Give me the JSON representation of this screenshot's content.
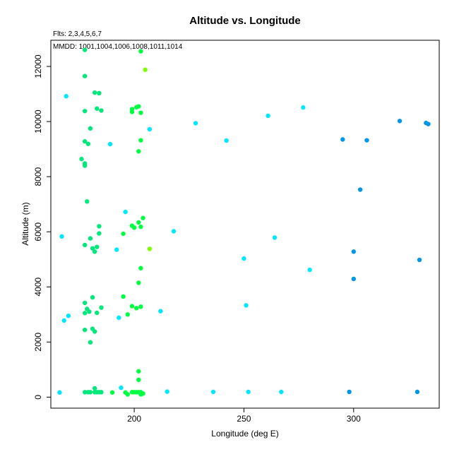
{
  "chart_data": {
    "type": "scatter",
    "title": "Altitude vs. Longitude",
    "notes": [
      "Flts: 2,3,4,5,6,7",
      "MMDD: 1001,1004,1006,1008,1011,1014"
    ],
    "xlabel": "Longitude (deg E)",
    "ylabel": "Altitude (m)",
    "xlim": [
      162,
      339
    ],
    "ylim": [
      -400,
      12950
    ],
    "xticks": [
      200,
      250,
      300
    ],
    "yticks": [
      0,
      2000,
      4000,
      6000,
      8000,
      10000,
      12000
    ],
    "grid": false,
    "series": [
      {
        "color": "#00e87a",
        "points": [
          [
            177.5,
            12600
          ],
          [
            177.5,
            11650
          ],
          [
            177.5,
            10380
          ],
          [
            177.5,
            9280
          ],
          [
            177.5,
            8480
          ],
          [
            177.5,
            8400
          ],
          [
            177.5,
            5520
          ],
          [
            177.5,
            3420
          ],
          [
            177.5,
            3050
          ],
          [
            177.5,
            2440
          ],
          [
            177.5,
            180
          ],
          [
            178.5,
            7100
          ],
          [
            178.5,
            3200
          ],
          [
            179.5,
            3100
          ],
          [
            179,
            180
          ],
          [
            180,
            180
          ],
          [
            181,
            3620
          ],
          [
            181,
            2480
          ],
          [
            182,
            2380
          ],
          [
            182,
            320
          ],
          [
            182,
            180
          ],
          [
            183,
            180
          ],
          [
            184,
            180
          ],
          [
            185,
            180
          ],
          [
            182,
            11050
          ],
          [
            184,
            11030
          ],
          [
            183,
            10470
          ],
          [
            185,
            10400
          ],
          [
            180,
            9750
          ],
          [
            184,
            6200
          ],
          [
            184,
            5940
          ],
          [
            183,
            5450
          ],
          [
            183,
            3060
          ],
          [
            185,
            3250
          ],
          [
            180,
            1990
          ],
          [
            176,
            8640
          ],
          [
            179,
            9190
          ],
          [
            180,
            5760
          ],
          [
            181,
            5400
          ],
          [
            182,
            5280
          ]
        ]
      },
      {
        "color": "#00ff40",
        "points": [
          [
            195,
            5930
          ],
          [
            195,
            3650
          ],
          [
            197,
            3000
          ],
          [
            199,
            6220
          ],
          [
            200,
            6150
          ],
          [
            199,
            3300
          ],
          [
            199,
            10450
          ],
          [
            199,
            10350
          ],
          [
            201,
            10520
          ],
          [
            202,
            10550
          ],
          [
            203,
            10320
          ],
          [
            203,
            9320
          ],
          [
            202,
            8920
          ],
          [
            202,
            6340
          ],
          [
            204,
            6500
          ],
          [
            203,
            6180
          ],
          [
            203,
            4680
          ],
          [
            202,
            4150
          ],
          [
            201,
            3230
          ],
          [
            203,
            3280
          ],
          [
            202,
            940
          ],
          [
            202,
            630
          ],
          [
            190,
            170
          ],
          [
            196,
            170
          ],
          [
            197,
            100
          ],
          [
            199,
            180
          ],
          [
            200,
            180
          ],
          [
            201,
            180
          ],
          [
            202,
            180
          ],
          [
            203,
            180
          ],
          [
            203,
            100
          ],
          [
            204,
            130
          ],
          [
            203,
            12550
          ]
        ]
      },
      {
        "color": "#7cff00",
        "points": [
          [
            205,
            11880
          ],
          [
            207,
            5380
          ]
        ]
      },
      {
        "color": "#00e8ff",
        "points": [
          [
            169,
            10920
          ],
          [
            167,
            5830
          ],
          [
            168,
            2780
          ],
          [
            170,
            2950
          ],
          [
            189,
            9180
          ],
          [
            192,
            5350
          ],
          [
            193,
            2880
          ],
          [
            194,
            340
          ],
          [
            196,
            6720
          ],
          [
            207,
            9720
          ],
          [
            212,
            3120
          ],
          [
            218,
            6020
          ],
          [
            215,
            200
          ],
          [
            228,
            9940
          ],
          [
            236,
            190
          ],
          [
            242,
            9310
          ],
          [
            250,
            5030
          ],
          [
            251,
            3330
          ],
          [
            252,
            190
          ],
          [
            261,
            10210
          ],
          [
            264,
            5790
          ],
          [
            267,
            190
          ],
          [
            277,
            10510
          ],
          [
            280,
            4620
          ],
          [
            166,
            170
          ]
        ]
      },
      {
        "color": "#0096e8",
        "points": [
          [
            295,
            9350
          ],
          [
            300,
            5280
          ],
          [
            300,
            4290
          ],
          [
            303,
            7530
          ],
          [
            306,
            9320
          ],
          [
            298,
            190
          ],
          [
            321,
            10020
          ],
          [
            330,
            4980
          ],
          [
            329,
            190
          ],
          [
            333,
            9950
          ],
          [
            334,
            9910
          ]
        ]
      }
    ]
  }
}
